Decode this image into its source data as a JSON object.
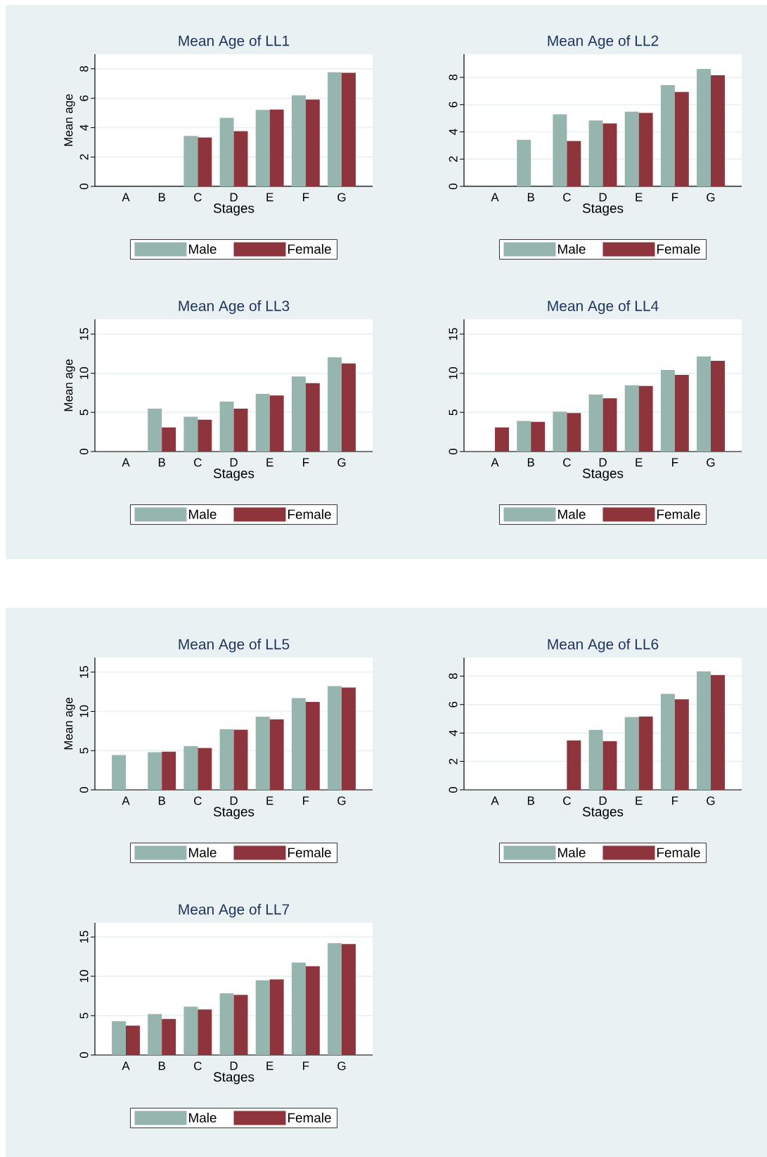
{
  "chart_data": [
    {
      "type": "bar",
      "title": "Mean Age of LL1",
      "xlabel": "Stages",
      "ylabel": "Mean age",
      "categories": [
        "A",
        "B",
        "C",
        "D",
        "E",
        "F",
        "G"
      ],
      "ylim": [
        0,
        9
      ],
      "yticks": [
        0,
        2,
        4,
        6,
        8
      ],
      "grid": "y",
      "legend": "bottom",
      "series": [
        {
          "name": "Male",
          "color": "#97b5af",
          "values": [
            null,
            null,
            3.43,
            4.67,
            5.2,
            6.2,
            7.76
          ]
        },
        {
          "name": "Female",
          "color": "#8e343c",
          "values": [
            null,
            null,
            3.33,
            3.76,
            5.23,
            5.91,
            7.73
          ]
        }
      ]
    },
    {
      "type": "bar",
      "title": "Mean Age of LL2",
      "xlabel": "Stages",
      "categories": [
        "A",
        "B",
        "C",
        "D",
        "E",
        "F",
        "G"
      ],
      "ylim": [
        0,
        9.7
      ],
      "yticks": [
        0,
        2,
        4,
        6,
        8
      ],
      "grid": "y",
      "legend": "bottom",
      "series": [
        {
          "name": "Male",
          "color": "#97b5af",
          "values": [
            null,
            3.42,
            5.29,
            4.83,
            5.48,
            7.43,
            8.61
          ]
        },
        {
          "name": "Female",
          "color": "#8e343c",
          "values": [
            null,
            null,
            3.32,
            4.61,
            5.39,
            6.92,
            8.15
          ]
        }
      ]
    },
    {
      "type": "bar",
      "title": "Mean Age of LL3",
      "xlabel": "Stages",
      "ylabel": "Mean age",
      "categories": [
        "A",
        "B",
        "C",
        "D",
        "E",
        "F",
        "G"
      ],
      "ylim": [
        0,
        16.9
      ],
      "yticks": [
        0,
        5,
        10,
        15
      ],
      "grid": "y",
      "legend": "bottom",
      "series": [
        {
          "name": "Male",
          "color": "#97b5af",
          "values": [
            null,
            5.47,
            4.45,
            6.39,
            7.38,
            9.59,
            12.04
          ]
        },
        {
          "name": "Female",
          "color": "#8e343c",
          "values": [
            null,
            3.08,
            4.06,
            5.47,
            7.17,
            8.75,
            11.26
          ]
        }
      ]
    },
    {
      "type": "bar",
      "title": "Mean Age of LL4",
      "xlabel": "Stages",
      "categories": [
        "A",
        "B",
        "C",
        "D",
        "E",
        "F",
        "G"
      ],
      "ylim": [
        0,
        16.9
      ],
      "yticks": [
        0,
        5,
        10,
        15
      ],
      "grid": "y",
      "legend": "bottom",
      "series": [
        {
          "name": "Male",
          "color": "#97b5af",
          "values": [
            null,
            3.91,
            5.11,
            7.29,
            8.46,
            10.43,
            12.16
          ]
        },
        {
          "name": "Female",
          "color": "#8e343c",
          "values": [
            3.08,
            3.79,
            4.93,
            6.81,
            8.37,
            9.8,
            11.59
          ]
        }
      ]
    },
    {
      "type": "bar",
      "title": "Mean Age of LL5",
      "xlabel": "Stages",
      "ylabel": "Mean age",
      "categories": [
        "A",
        "B",
        "C",
        "D",
        "E",
        "F",
        "G"
      ],
      "ylim": [
        0,
        16.85
      ],
      "yticks": [
        0,
        5,
        10,
        15
      ],
      "grid": "y",
      "legend": "bottom",
      "series": [
        {
          "name": "Male",
          "color": "#97b5af",
          "values": [
            4.44,
            4.8,
            5.58,
            7.72,
            9.33,
            11.69,
            13.21
          ]
        },
        {
          "name": "Female",
          "color": "#8e343c",
          "values": [
            null,
            4.86,
            5.34,
            7.66,
            8.98,
            11.21,
            13.03
          ]
        }
      ]
    },
    {
      "type": "bar",
      "title": "Mean Age of LL6",
      "xlabel": "Stages",
      "categories": [
        "A",
        "B",
        "C",
        "D",
        "E",
        "F",
        "G"
      ],
      "ylim": [
        0,
        9.3
      ],
      "yticks": [
        0,
        2,
        4,
        6,
        8
      ],
      "grid": "y",
      "legend": "bottom",
      "series": [
        {
          "name": "Male",
          "color": "#97b5af",
          "values": [
            null,
            null,
            null,
            4.22,
            5.12,
            6.75,
            8.33
          ]
        },
        {
          "name": "Female",
          "color": "#8e343c",
          "values": [
            null,
            null,
            3.48,
            3.43,
            5.16,
            6.37,
            8.07
          ]
        }
      ]
    },
    {
      "type": "bar",
      "title": "Mean Age of LL7",
      "xlabel": "Stages",
      "categories": [
        "A",
        "B",
        "C",
        "D",
        "E",
        "F",
        "G"
      ],
      "ylim": [
        0,
        16.8
      ],
      "yticks": [
        0,
        5,
        10,
        15
      ],
      "grid": "y",
      "legend": "bottom",
      "series": [
        {
          "name": "Male",
          "color": "#97b5af",
          "values": [
            4.29,
            5.2,
            6.15,
            7.83,
            9.5,
            11.74,
            14.2
          ]
        },
        {
          "name": "Female",
          "color": "#8e343c",
          "values": [
            3.73,
            4.57,
            5.78,
            7.64,
            9.6,
            11.28,
            14.1
          ]
        }
      ]
    }
  ]
}
